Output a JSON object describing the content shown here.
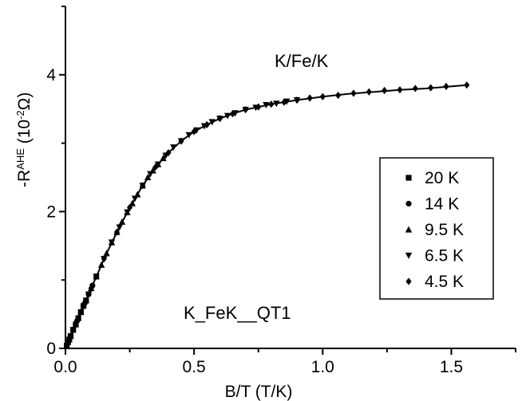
{
  "chart_data": {
    "type": "scatter",
    "title": "",
    "xlabel": "B/T (T/K)",
    "ylabel": {
      "prefix": "-R",
      "superscript": "AHE",
      "unit_open": " (10",
      "unit_exp": "-2",
      "unit_close": "Ω)"
    },
    "xlim": [
      0.0,
      1.75
    ],
    "ylim": [
      0,
      5
    ],
    "xticks": [
      "0.0",
      "0.5",
      "1.0",
      "1.5"
    ],
    "yticks": [
      "0",
      "2",
      "4"
    ],
    "annotations": [
      "K/Fe/K",
      "K_FeK__QT1"
    ],
    "legend_position": "right",
    "fit_curve": {
      "x": [
        0.0,
        0.025,
        0.05,
        0.075,
        0.1,
        0.125,
        0.15,
        0.2,
        0.25,
        0.3,
        0.35,
        0.4,
        0.45,
        0.5,
        0.55,
        0.6,
        0.65,
        0.7,
        0.8,
        0.9,
        1.0,
        1.1,
        1.2,
        1.3,
        1.4,
        1.5,
        1.56
      ],
      "y": [
        0.0,
        0.22,
        0.44,
        0.66,
        0.88,
        1.09,
        1.31,
        1.7,
        2.06,
        2.38,
        2.65,
        2.86,
        3.03,
        3.17,
        3.27,
        3.36,
        3.43,
        3.49,
        3.57,
        3.63,
        3.68,
        3.72,
        3.75,
        3.78,
        3.8,
        3.83,
        3.85
      ]
    },
    "series": [
      {
        "name": "20 K",
        "marker": "square",
        "x": [
          0.005,
          0.01,
          0.015,
          0.02,
          0.03,
          0.04,
          0.05,
          0.06,
          0.07,
          0.08
        ],
        "y": [
          0.04,
          0.09,
          0.13,
          0.18,
          0.27,
          0.35,
          0.44,
          0.53,
          0.62,
          0.7
        ]
      },
      {
        "name": "14 K",
        "marker": "circle",
        "x": [
          0.01,
          0.02,
          0.03,
          0.045,
          0.06,
          0.075,
          0.09,
          0.105,
          0.12
        ],
        "y": [
          0.09,
          0.18,
          0.27,
          0.4,
          0.53,
          0.66,
          0.79,
          0.92,
          1.05
        ]
      },
      {
        "name": "9.5 K",
        "marker": "triangle-up",
        "x": [
          0.02,
          0.04,
          0.06,
          0.08,
          0.1,
          0.12,
          0.14,
          0.16,
          0.18,
          0.2,
          0.22,
          0.24,
          0.26,
          0.28,
          0.3,
          0.32,
          0.34,
          0.36,
          0.38
        ],
        "y": [
          0.18,
          0.35,
          0.53,
          0.7,
          0.88,
          1.05,
          1.22,
          1.39,
          1.55,
          1.7,
          1.85,
          1.99,
          2.12,
          2.25,
          2.38,
          2.5,
          2.6,
          2.69,
          2.78
        ]
      },
      {
        "name": "6.5 K",
        "marker": "triangle-down",
        "x": [
          0.03,
          0.06,
          0.09,
          0.12,
          0.15,
          0.18,
          0.21,
          0.24,
          0.27,
          0.3,
          0.33,
          0.36,
          0.39,
          0.42,
          0.45,
          0.48,
          0.51,
          0.54,
          0.57,
          0.6,
          0.63,
          0.66,
          0.7,
          0.74,
          0.78,
          0.82,
          0.86,
          0.9
        ],
        "y": [
          0.27,
          0.53,
          0.79,
          1.05,
          1.31,
          1.55,
          1.77,
          1.99,
          2.19,
          2.38,
          2.55,
          2.69,
          2.82,
          2.94,
          3.03,
          3.12,
          3.19,
          3.25,
          3.31,
          3.36,
          3.4,
          3.44,
          3.49,
          3.52,
          3.56,
          3.58,
          3.61,
          3.63
        ]
      },
      {
        "name": "4.5 K",
        "marker": "diamond",
        "x": [
          0.05,
          0.1,
          0.15,
          0.2,
          0.25,
          0.3,
          0.35,
          0.4,
          0.45,
          0.5,
          0.55,
          0.6,
          0.65,
          0.7,
          0.75,
          0.8,
          0.85,
          0.9,
          0.95,
          1.0,
          1.06,
          1.12,
          1.18,
          1.24,
          1.3,
          1.36,
          1.42,
          1.48,
          1.56
        ],
        "y": [
          0.44,
          0.88,
          1.31,
          1.7,
          2.06,
          2.38,
          2.65,
          2.86,
          3.03,
          3.17,
          3.27,
          3.36,
          3.43,
          3.49,
          3.53,
          3.57,
          3.6,
          3.63,
          3.66,
          3.68,
          3.7,
          3.73,
          3.75,
          3.77,
          3.78,
          3.8,
          3.81,
          3.83,
          3.85
        ]
      }
    ]
  }
}
